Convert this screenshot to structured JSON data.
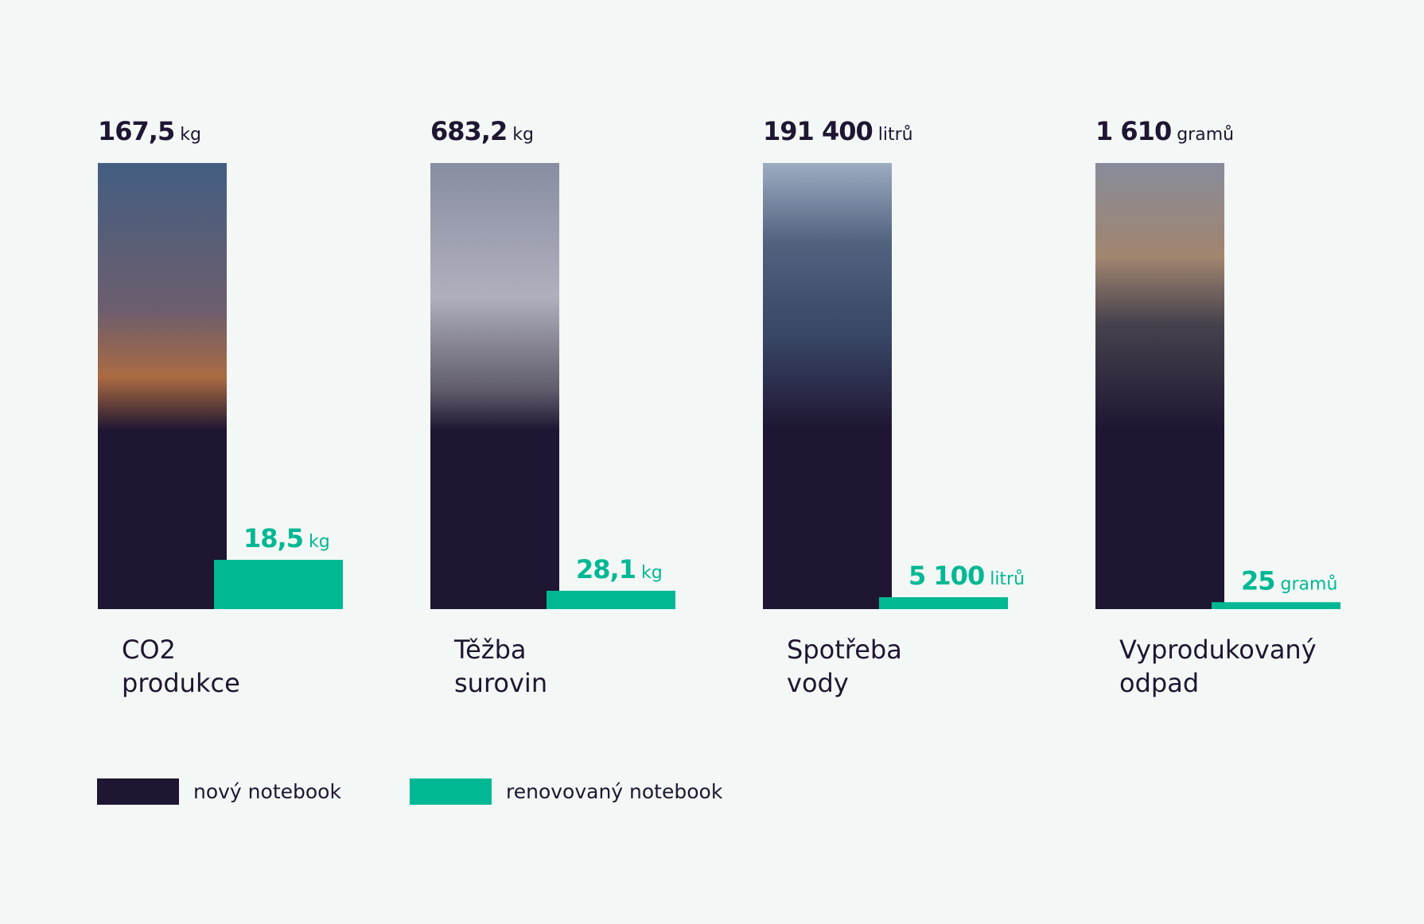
{
  "chart_data": {
    "type": "bar",
    "categories": [
      "CO2 produkce",
      "Těžba surovin",
      "Spotřeba vody",
      "Vyprodukovaný odpad"
    ],
    "units": [
      "kg",
      "kg",
      "litrů",
      "gramů"
    ],
    "series": [
      {
        "name": "nový notebook",
        "color": "#1e1632",
        "values": [
          167.5,
          683.2,
          191400,
          1610
        ],
        "value_labels": [
          "167,5",
          "683,2",
          "191 400",
          "1 610"
        ]
      },
      {
        "name": "renovovaný notebook",
        "color": "#00b894",
        "values": [
          18.5,
          28.1,
          5100,
          25
        ],
        "value_labels": [
          "18,5",
          "28,1",
          "5 100",
          "25"
        ]
      }
    ]
  }
}
